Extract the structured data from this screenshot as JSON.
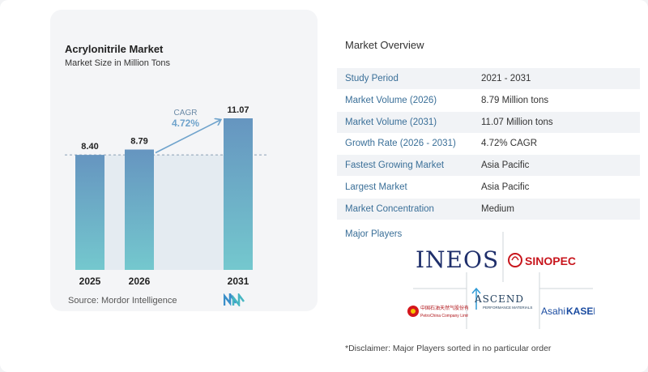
{
  "chart_data": {
    "type": "bar",
    "title": "Acrylonitrile Market",
    "subtitle": "Market Size in Million Tons",
    "categories": [
      "2025",
      "2026",
      "2031"
    ],
    "values": [
      8.4,
      8.79,
      11.07
    ],
    "value_labels": [
      "8.40",
      "8.79",
      "11.07"
    ],
    "cagr_label": "CAGR",
    "cagr_value": "4.72%",
    "ylim": [
      0,
      11.07
    ],
    "grid": false,
    "reference_line": "dashed at 2025 value"
  },
  "source": "Source:  Mordor Intelligence",
  "overview": {
    "title": "Market Overview",
    "rows": [
      {
        "label": "Study Period",
        "value": "2021 - 2031"
      },
      {
        "label": "Market Volume (2026)",
        "value": "8.79 Million tons"
      },
      {
        "label": "Market Volume (2031)",
        "value": "11.07 Million tons"
      },
      {
        "label": "Growth Rate (2026 - 2031)",
        "value": "4.72% CAGR"
      },
      {
        "label": "Fastest Growing Market",
        "value": "Asia Pacific"
      },
      {
        "label": "Largest Market",
        "value": "Asia Pacific"
      },
      {
        "label": "Market Concentration",
        "value": "Medium"
      }
    ],
    "players_label": "Major Players",
    "players": [
      "INEOS",
      "SINOPEC",
      "中国石油天然气股份有限公司 PetroChina Company Limited",
      "ASCEND PERFORMANCE MATERIALS",
      "Asahi KASEI"
    ]
  },
  "disclaimer": "*Disclaimer: Major Players sorted in no particular order",
  "colors": {
    "bar_top": "#6695c0",
    "bar_bottom": "#74c8ce",
    "label_blue": "#3a6f98",
    "cagr_blue": "#6fa3cc",
    "shade": "#dfe7ef"
  }
}
